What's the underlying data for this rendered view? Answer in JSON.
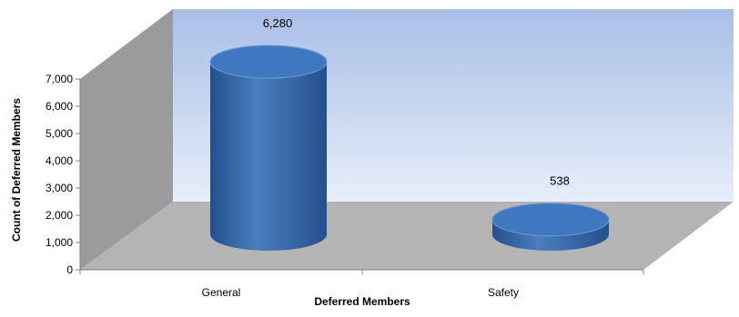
{
  "chart_data": {
    "type": "bar",
    "shape": "cylinder",
    "categories": [
      "General",
      "Safety"
    ],
    "values": [
      6280,
      538
    ],
    "data_labels": [
      "6,280",
      "538"
    ],
    "xlabel": "Deferred Members",
    "ylabel": "Count of Deferred Members",
    "ylim": [
      0,
      7000
    ],
    "yticks": [
      0,
      1000,
      2000,
      3000,
      4000,
      5000,
      6000,
      7000
    ],
    "ytick_labels": [
      "0",
      "1,000",
      "2,000",
      "3,000",
      "4,000",
      "5,000",
      "6,000",
      "7,000"
    ],
    "grid": false,
    "legend": "none",
    "colors": {
      "bar": "#4a7ebf",
      "bar_dark": "#23508c",
      "bar_top": "#3f78c0",
      "back_wall_top": "#a8bfe6",
      "back_wall_bottom": "#e7eefa",
      "side_wall": "#9b9b9b",
      "floor": "#b4b4b4"
    }
  }
}
